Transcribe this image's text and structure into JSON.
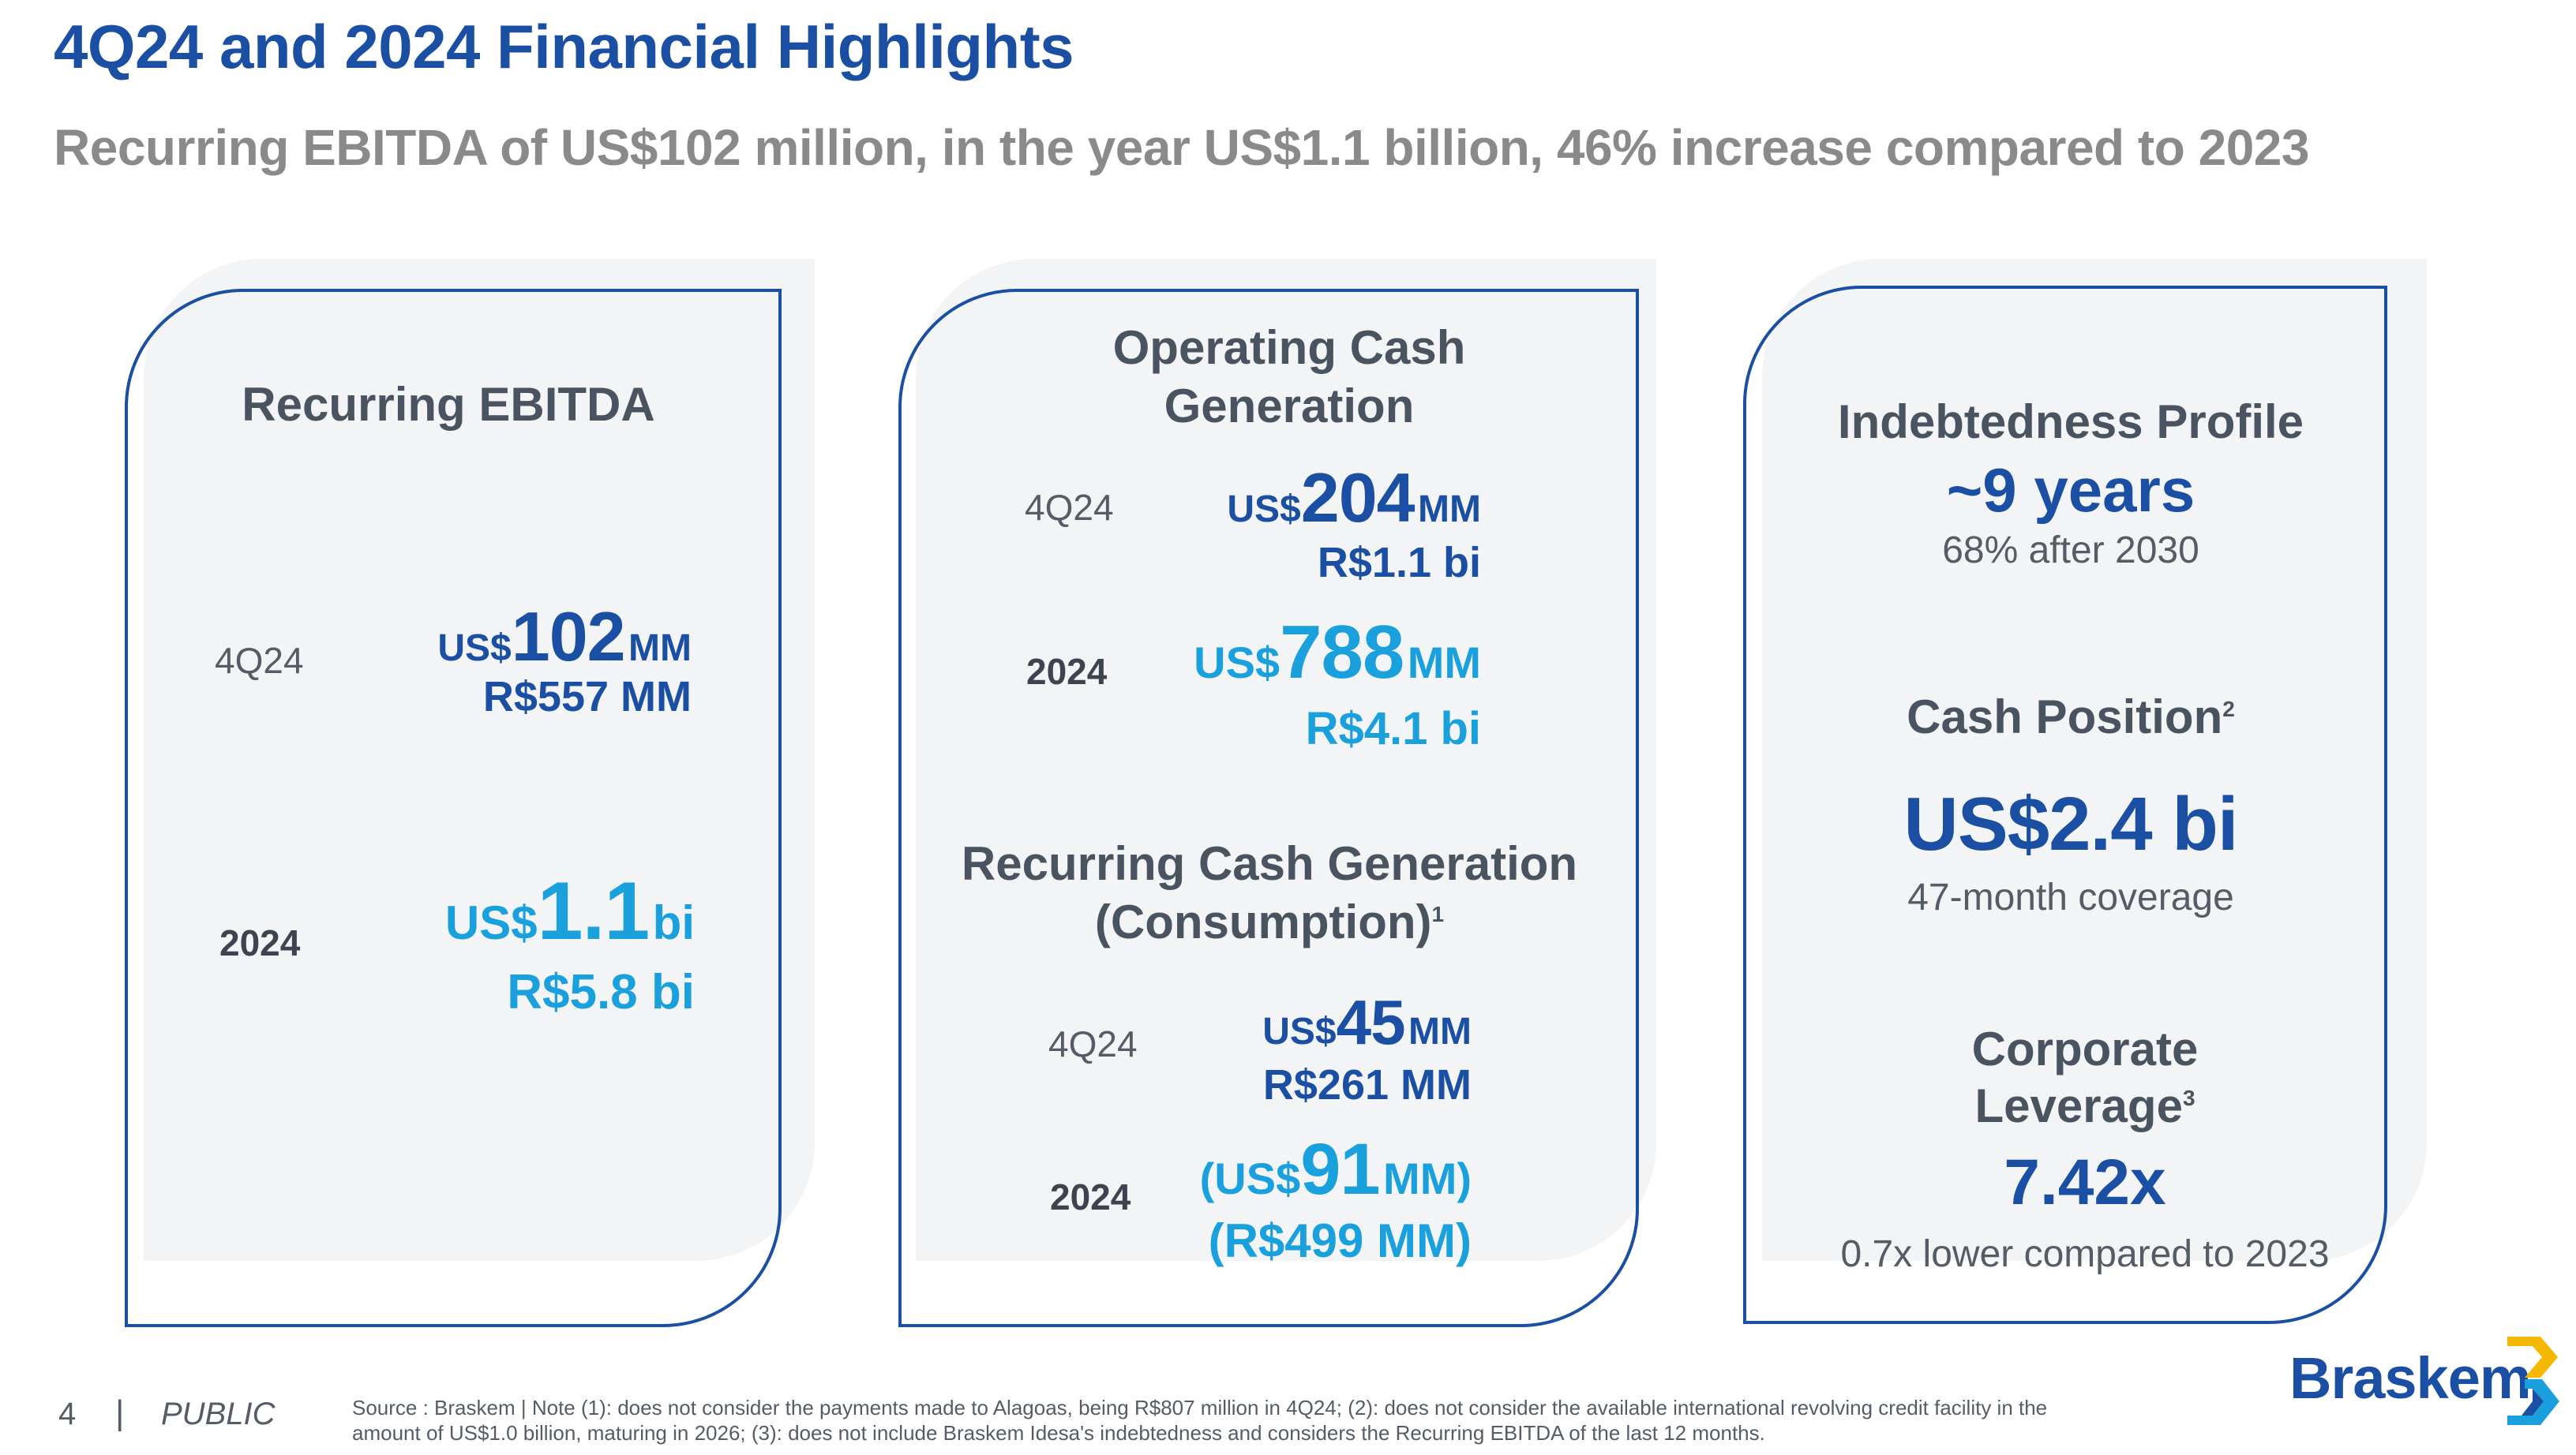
{
  "header": {
    "title": "4Q24 and 2024 Financial Highlights",
    "subtitle": "Recurring EBITDA of US$102 million, in the year US$1.1 billion, 46% increase compared to 2023"
  },
  "card_ebitda": {
    "heading": "Recurring EBITDA",
    "q_label": "4Q24",
    "q_cur": "US$",
    "q_num": "102",
    "q_unit": "MM",
    "q_brl": "R$557 MM",
    "y_label": "2024",
    "y_cur": "US$",
    "y_num": "1.1",
    "y_unit": "bi",
    "y_brl": "R$5.8 bi"
  },
  "card_cash": {
    "heading_line1": "Operating Cash",
    "heading_line2": "Generation",
    "q_label": "4Q24",
    "q_cur": "US$",
    "q_num": "204",
    "q_unit": "MM",
    "q_brl": "R$1.1 bi",
    "y_label": "2024",
    "y_cur": "US$",
    "y_num": "788",
    "y_unit": "MM",
    "y_brl": "R$4.1 bi",
    "rec_heading_line1": "Recurring Cash Generation",
    "rec_heading_line2": "(Consumption)",
    "rec_heading_sup": "1",
    "rq_label": "4Q24",
    "rq_cur": "US$",
    "rq_num": "45",
    "rq_unit": "MM",
    "rq_brl": "R$261 MM",
    "ry_label": "2024",
    "ry_open": "(US$",
    "ry_num": "91",
    "ry_unit": "MM)",
    "ry_brl": "(R$499 MM)"
  },
  "card_debt": {
    "indebt_heading": "Indebtedness Profile",
    "indebt_value": "~9 years",
    "indebt_note": "68% after 2030",
    "cash_heading": "Cash Position",
    "cash_sup": "2",
    "cash_value": "US$2.4 bi",
    "cash_note": "47-month coverage",
    "lev_heading_line1": "Corporate",
    "lev_heading_line2": "Leverage",
    "lev_sup": "3",
    "lev_value": "7.42x",
    "lev_note": "0.7x lower compared to 2023"
  },
  "footer": {
    "page": "4",
    "separator": "|",
    "classification": "PUBLIC",
    "source_line1": "Source : Braskem | Note (1): does not consider the payments made to Alagoas, being R$807 million in 4Q24; (2): does not consider the available international revolving credit facility in the",
    "source_line2": "amount of US$1.0 billion, maturing in 2026; (3): does not include Braskem Idesa's indebtedness and considers the Recurring EBITDA of the last 12 months.",
    "logo": "Braskem"
  },
  "colors": {
    "brand_dark_blue": "#1a4fa3",
    "brand_light_blue": "#1aa0dc",
    "logo_yellow": "#f5b800"
  }
}
